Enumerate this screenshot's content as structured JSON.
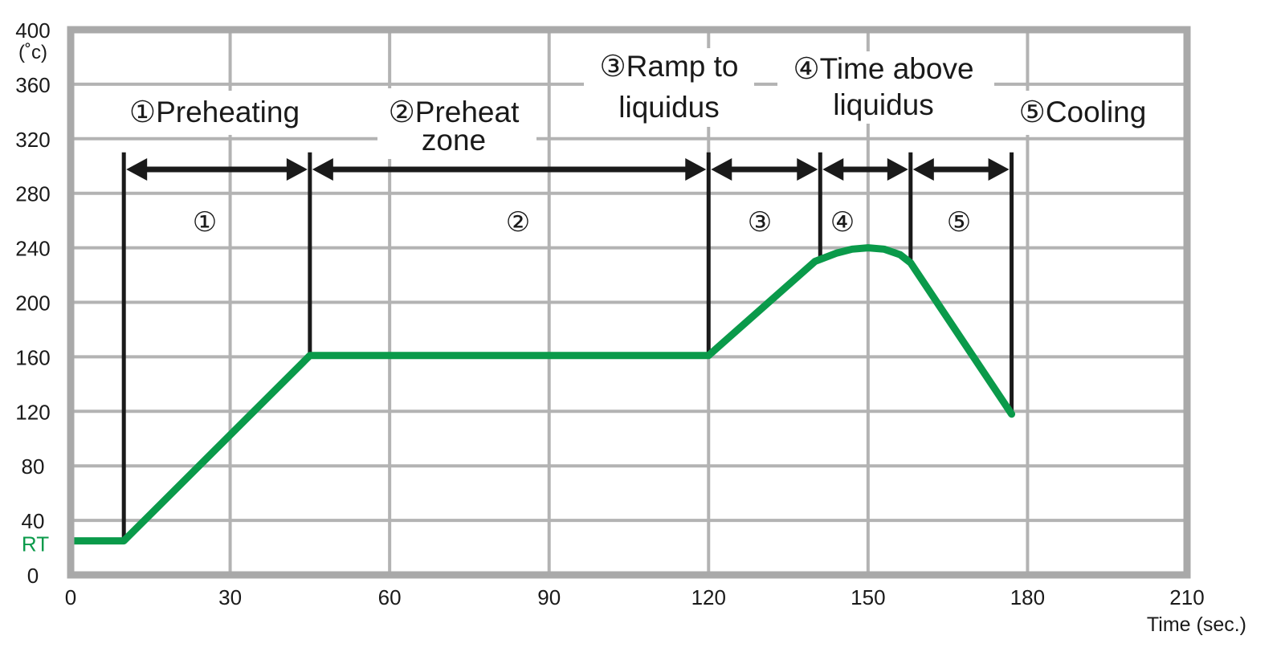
{
  "chart_data": {
    "type": "line",
    "y_unit": "(˚c)",
    "xlabel": "Time (sec.)",
    "xlim": [
      0,
      210
    ],
    "ylim": [
      0,
      400
    ],
    "x_ticks": [
      0,
      30,
      60,
      90,
      120,
      150,
      180,
      210
    ],
    "y_ticks": [
      0,
      40,
      80,
      120,
      160,
      200,
      240,
      280,
      320,
      360,
      400
    ],
    "rt_label": "RT",
    "grid": true,
    "series": [
      {
        "color": "#0a9a4a",
        "points": [
          [
            0,
            25
          ],
          [
            10,
            25
          ],
          [
            45,
            161
          ],
          [
            120,
            161
          ],
          [
            140,
            230
          ],
          [
            144,
            236
          ],
          [
            147,
            239
          ],
          [
            150,
            240
          ],
          [
            153,
            239
          ],
          [
            156,
            235
          ],
          [
            158,
            229
          ],
          [
            177,
            118
          ]
        ]
      }
    ],
    "boundaries": [
      {
        "x": 10,
        "y_top": 310
      },
      {
        "x": 45,
        "y_top": 310
      },
      {
        "x": 120,
        "y_top": 310
      },
      {
        "x": 141,
        "y_top": 310
      },
      {
        "x": 158,
        "y_top": 310
      },
      {
        "x": 177,
        "y_top": 310
      }
    ],
    "zone_numbers": [
      "①",
      "②",
      "③",
      "④",
      "⑤"
    ],
    "phase_labels": [
      {
        "line1": "①Preheating",
        "line2": ""
      },
      {
        "line1": "②Preheat",
        "line2": "zone"
      },
      {
        "line1": "③Ramp to",
        "line2": "liquidus"
      },
      {
        "line1": "④Time above",
        "line2": "liquidus"
      },
      {
        "line1": "⑤Cooling",
        "line2": ""
      }
    ],
    "colors": {
      "profile": "#0a9a4a",
      "grid": "#b3b3b3",
      "frame": "#a9a9a9",
      "arrows": "#1a1a1a",
      "rt": "#0a9a4a"
    }
  }
}
